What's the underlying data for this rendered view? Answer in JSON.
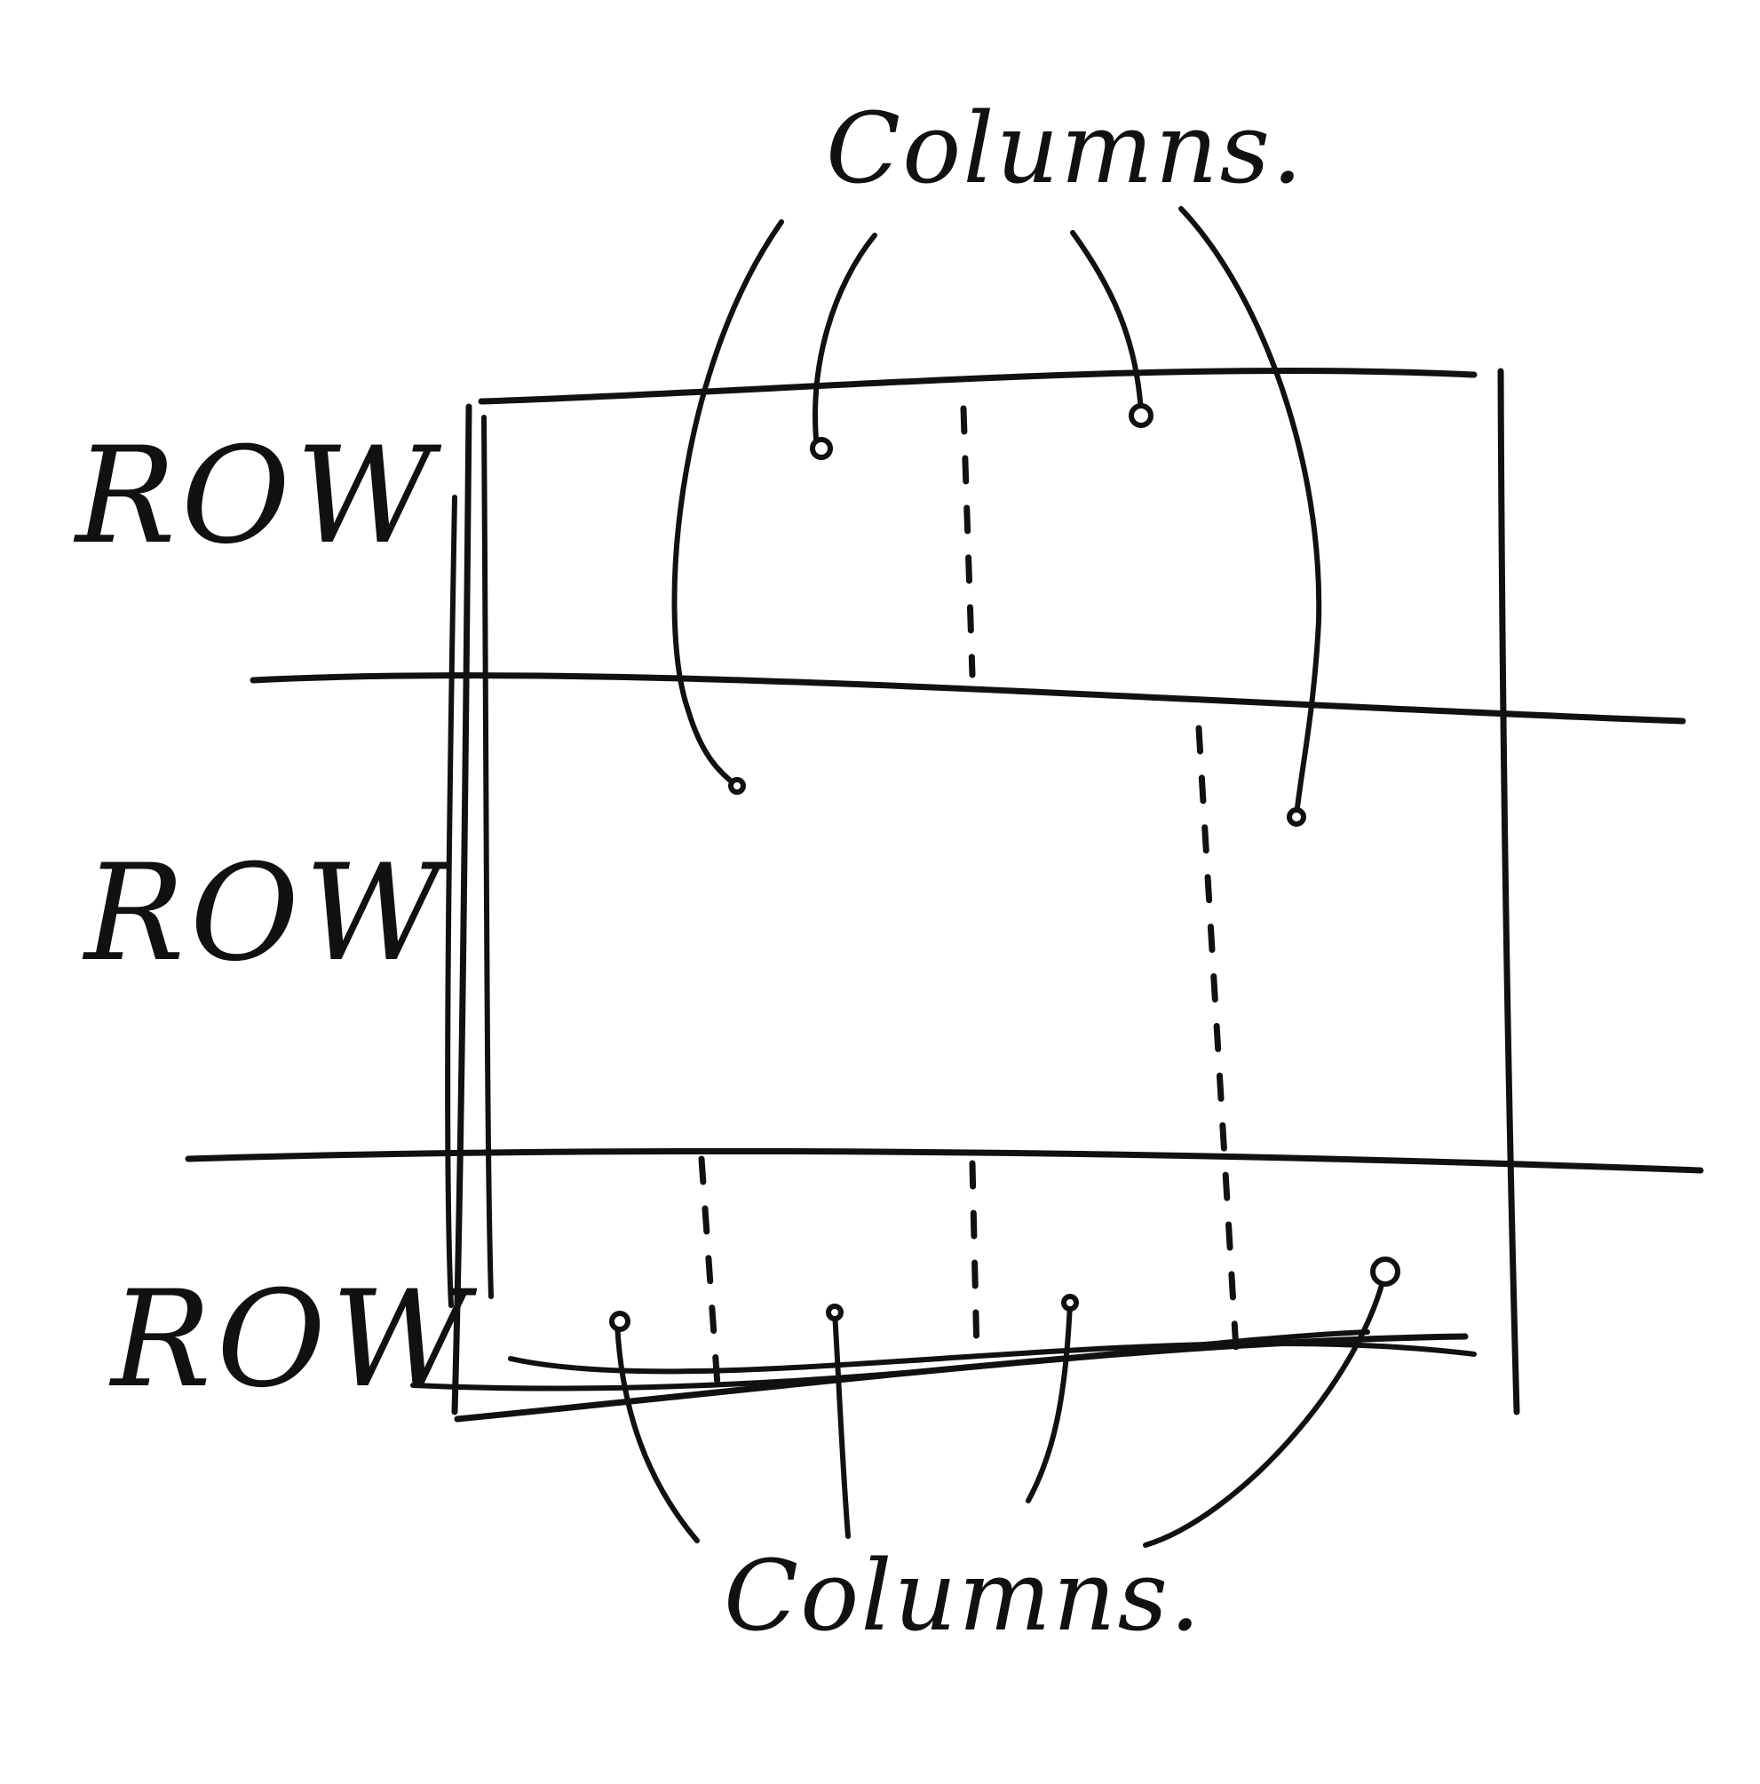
{
  "labels": {
    "top_columns": "Columns.",
    "bottom_columns": "Columns.",
    "rows": [
      "ROW",
      "ROW",
      "ROW"
    ]
  },
  "ink_color": "#111111"
}
